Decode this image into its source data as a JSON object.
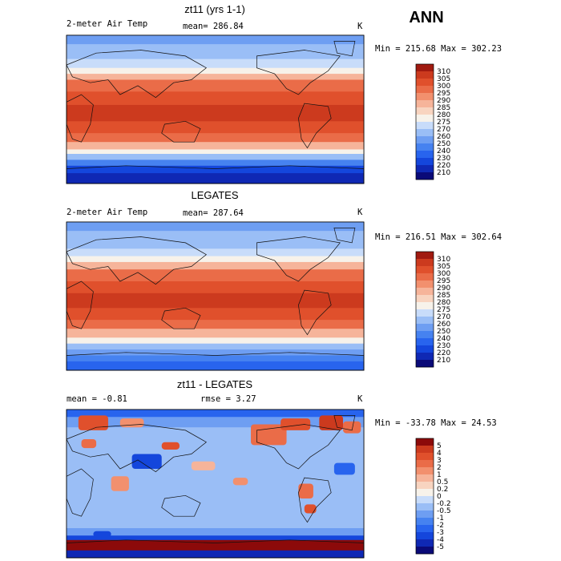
{
  "season": "ANN",
  "colors": {
    "temp": [
      "#0a0a78",
      "#0f28b4",
      "#1446dc",
      "#2864ee",
      "#4682f0",
      "#6e9ef2",
      "#9abef6",
      "#c8dcfa",
      "#f7f2ea",
      "#f8d4c0",
      "#f6b49a",
      "#f2906e",
      "#ea6c48",
      "#e0502c",
      "#cc3a1e",
      "#a01a10"
    ],
    "diff": [
      "#0a0a78",
      "#0f28b4",
      "#1446dc",
      "#2864ee",
      "#4682f0",
      "#6e9ef2",
      "#9abef6",
      "#c8dcfa",
      "#f7f2ea",
      "#f8d4c0",
      "#f6b49a",
      "#f2906e",
      "#ea6c48",
      "#e0502c",
      "#cc3a1e",
      "#8c0a0a"
    ]
  },
  "chart_data": [
    {
      "type": "heatmap",
      "title": "zt11 (yrs 1-1)",
      "left_label": "2-meter Air Temp",
      "mean_label": "mean= 286.84",
      "unit": "K",
      "minmax_label": "Min = 215.68 Max = 302.23",
      "min": 215.68,
      "max": 302.23,
      "mean": 286.84,
      "colorbar": {
        "labels": [
          "310",
          "305",
          "300",
          "295",
          "290",
          "285",
          "280",
          "275",
          "270",
          "260",
          "250",
          "240",
          "230",
          "220",
          "210"
        ]
      }
    },
    {
      "type": "heatmap",
      "title": "LEGATES",
      "left_label": "2-meter Air Temp",
      "mean_label": "mean= 287.64",
      "unit": "K",
      "minmax_label": "Min = 216.51 Max = 302.64",
      "min": 216.51,
      "max": 302.64,
      "mean": 287.64,
      "colorbar": {
        "labels": [
          "310",
          "305",
          "300",
          "295",
          "290",
          "285",
          "280",
          "275",
          "270",
          "260",
          "250",
          "240",
          "230",
          "220",
          "210"
        ]
      }
    },
    {
      "type": "heatmap",
      "title": "zt11 - LEGATES",
      "left_label": "mean =   -0.81",
      "mean_label": "rmse =    3.27",
      "unit": "K",
      "minmax_label": "Min = -33.78 Max =   24.53",
      "min": -33.78,
      "max": 24.53,
      "mean": -0.81,
      "rmse": 3.27,
      "colorbar": {
        "labels": [
          "5",
          "4",
          "3",
          "2",
          "1",
          "0.5",
          "0.2",
          "0",
          "-0.2",
          "-0.5",
          "-1",
          "-2",
          "-3",
          "-4",
          "-5"
        ]
      }
    }
  ]
}
